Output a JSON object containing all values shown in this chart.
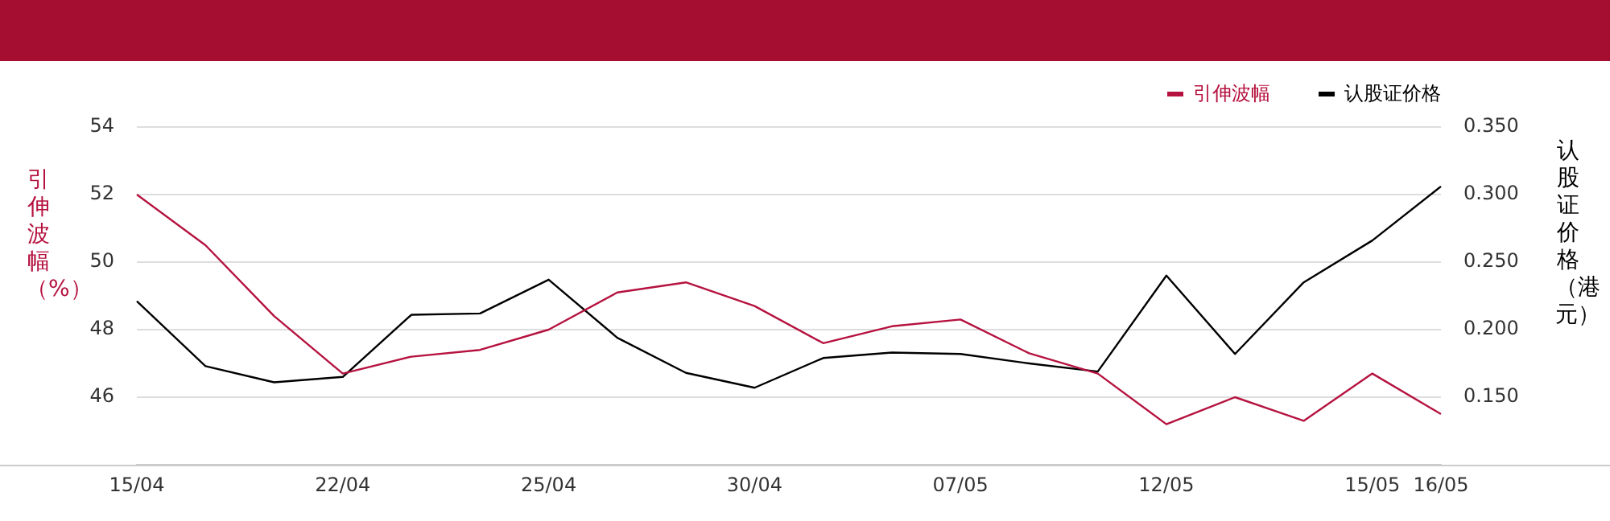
{
  "chart_data": {
    "type": "line",
    "categories": [
      "15/04",
      null,
      null,
      "22/04",
      null,
      null,
      "25/04",
      null,
      null,
      "30/04",
      null,
      null,
      "07/05",
      null,
      null,
      "12/05",
      null,
      null,
      "15/05",
      "16/05"
    ],
    "series": [
      {
        "name": "引伸波幅",
        "color": "#b5123f",
        "values": [
          52.0,
          50.5,
          48.4,
          46.7,
          47.2,
          47.4,
          48.0,
          49.1,
          49.4,
          48.7,
          47.6,
          48.1,
          48.3,
          47.3,
          46.7,
          45.2,
          46.0,
          45.3,
          46.7,
          45.5
        ]
      },
      {
        "name": "认股证价格",
        "color": "#000000",
        "axis": "y2",
        "values": [
          0.221,
          0.173,
          0.161,
          0.165,
          0.211,
          0.212,
          0.237,
          0.194,
          0.168,
          0.157,
          0.179,
          0.183,
          0.182,
          0.175,
          0.169,
          0.24,
          0.182,
          0.235,
          0.266,
          0.306
        ]
      }
    ],
    "ylabel": "引伸波幅（%）",
    "y2label": "认股证价格（港元）",
    "ylim": [
      44,
      54
    ],
    "yticks": [
      46,
      48,
      50,
      52,
      54
    ],
    "y2lim": [
      0.1,
      0.35
    ],
    "y2ticks": [
      {
        "value": 0.15,
        "label": "0.150"
      },
      {
        "value": 0.2,
        "label": "0.200"
      },
      {
        "value": 0.25,
        "label": "0.250"
      },
      {
        "value": 0.3,
        "label": "0.300"
      },
      {
        "value": 0.35,
        "label": "0.350"
      }
    ],
    "grid": "y",
    "legend": "top right",
    "marker": "none",
    "line_style": "solid"
  }
}
